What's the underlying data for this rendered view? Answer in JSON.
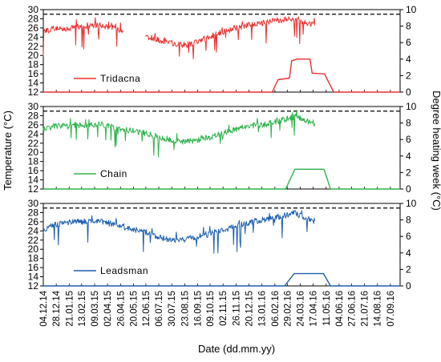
{
  "chart_data": {
    "type": "line",
    "title": "",
    "xlabel": "Date (dd.mm.yy)",
    "ylabel_left": "Temperature (°C)",
    "ylabel_right": "Degree heating week (°C)",
    "x_tick_labels": [
      "04.12.14",
      "28.12.14",
      "21.01.15",
      "13.02.15",
      "09.03.15",
      "02.04.15",
      "26.04.15",
      "20.05.15",
      "12.06.15",
      "06.07.15",
      "30.07.15",
      "23.08.15",
      "16.09.15",
      "09.10.15",
      "02.11.15",
      "26.11.15",
      "20.12.15",
      "13.01.16",
      "06.02.16",
      "29.02.16",
      "24.03.16",
      "17.04.16",
      "11.05.16",
      "04.06.16",
      "27.06.16",
      "21.07.16",
      "14.08.16",
      "07.09.16"
    ],
    "x_range": [
      "2014-12-04",
      "2016-09-25"
    ],
    "temperature_ylim": [
      12,
      30
    ],
    "temperature_ticks": [
      12,
      14,
      16,
      18,
      20,
      22,
      24,
      26,
      28,
      30
    ],
    "dhw_ylim": [
      0,
      10
    ],
    "dhw_ticks": [
      0,
      2,
      4,
      6,
      8,
      10
    ],
    "bleaching_threshold": 29,
    "panels": [
      {
        "name": "Tridacna",
        "color": "#e8302e",
        "temperature_segments": [
          [
            [
              "2014-12-04",
              25.0
            ],
            [
              "2014-12-19",
              25.8
            ],
            [
              "2015-01-03",
              26.0
            ],
            [
              "2015-01-18",
              25.6
            ],
            [
              "2015-02-02",
              26.2
            ],
            [
              "2015-02-17",
              26.1
            ],
            [
              "2015-03-04",
              26.6
            ],
            [
              "2015-03-19",
              26.5
            ],
            [
              "2015-04-03",
              26.3
            ],
            [
              "2015-04-18",
              25.7
            ],
            [
              "2015-04-30",
              25.4
            ]
          ],
          [
            [
              "2015-06-12",
              24.2
            ],
            [
              "2015-06-27",
              23.7
            ],
            [
              "2015-07-12",
              23.2
            ],
            [
              "2015-07-27",
              22.8
            ],
            [
              "2015-08-11",
              22.4
            ],
            [
              "2015-08-26",
              22.3
            ],
            [
              "2015-09-10",
              22.8
            ],
            [
              "2015-09-25",
              23.4
            ],
            [
              "2015-10-10",
              24.1
            ],
            [
              "2015-10-25",
              24.8
            ],
            [
              "2015-11-09",
              25.4
            ],
            [
              "2015-11-24",
              26.0
            ],
            [
              "2015-12-09",
              26.4
            ],
            [
              "2015-12-24",
              26.7
            ],
            [
              "2016-01-08",
              27.0
            ],
            [
              "2016-01-23",
              27.3
            ],
            [
              "2016-02-07",
              27.6
            ],
            [
              "2016-02-22",
              27.8
            ],
            [
              "2016-03-08",
              27.9
            ],
            [
              "2016-03-23",
              27.6
            ],
            [
              "2016-04-07",
              27.0
            ],
            [
              "2016-04-20",
              26.6
            ]
          ]
        ],
        "dhw": [
          [
            "2014-12-04",
            0
          ],
          [
            "2016-02-01",
            0
          ],
          [
            "2016-02-12",
            1.5
          ],
          [
            "2016-03-04",
            1.7
          ],
          [
            "2016-03-08",
            3.8
          ],
          [
            "2016-03-18",
            4.0
          ],
          [
            "2016-04-11",
            4.0
          ],
          [
            "2016-04-15",
            2.3
          ],
          [
            "2016-05-08",
            2.2
          ],
          [
            "2016-05-25",
            0
          ],
          [
            "2016-09-25",
            0
          ]
        ]
      },
      {
        "name": "Chain",
        "color": "#2db34a",
        "temperature_segments": [
          [
            [
              "2014-12-04",
              24.8
            ],
            [
              "2014-12-19",
              25.6
            ],
            [
              "2015-01-03",
              25.8
            ],
            [
              "2015-01-18",
              25.7
            ],
            [
              "2015-02-02",
              26.0
            ],
            [
              "2015-02-17",
              25.9
            ],
            [
              "2015-03-04",
              26.0
            ],
            [
              "2015-03-19",
              26.2
            ],
            [
              "2015-04-03",
              25.9
            ],
            [
              "2015-04-18",
              25.4
            ],
            [
              "2015-05-03",
              25.0
            ],
            [
              "2015-05-18",
              24.7
            ],
            [
              "2015-06-02",
              24.3
            ],
            [
              "2015-06-17",
              24.0
            ],
            [
              "2015-07-02",
              23.5
            ],
            [
              "2015-07-17",
              23.0
            ],
            [
              "2015-08-01",
              22.7
            ],
            [
              "2015-08-16",
              22.2
            ],
            [
              "2015-08-31",
              22.4
            ],
            [
              "2015-09-15",
              22.7
            ],
            [
              "2015-09-30",
              23.1
            ],
            [
              "2015-10-15",
              23.5
            ],
            [
              "2015-10-30",
              24.1
            ],
            [
              "2015-11-14",
              24.6
            ],
            [
              "2015-11-29",
              25.1
            ],
            [
              "2015-12-14",
              25.5
            ],
            [
              "2015-12-29",
              25.9
            ],
            [
              "2016-01-13",
              26.1
            ],
            [
              "2016-01-28",
              26.3
            ],
            [
              "2016-02-12",
              26.8
            ],
            [
              "2016-02-27",
              27.2
            ],
            [
              "2016-03-13",
              27.8
            ],
            [
              "2016-03-28",
              27.2
            ],
            [
              "2016-04-12",
              26.7
            ],
            [
              "2016-04-20",
              26.3
            ]
          ]
        ],
        "dhw": [
          [
            "2014-12-04",
            0
          ],
          [
            "2016-02-26",
            0
          ],
          [
            "2016-03-14",
            2.4
          ],
          [
            "2016-05-07",
            2.4
          ],
          [
            "2016-05-19",
            0
          ],
          [
            "2016-09-25",
            0
          ]
        ]
      },
      {
        "name": "Leadsman",
        "color": "#1f5fae",
        "temperature_segments": [
          [
            [
              "2014-12-04",
              24.0
            ],
            [
              "2014-12-19",
              25.0
            ],
            [
              "2015-01-03",
              25.6
            ],
            [
              "2015-01-18",
              25.9
            ],
            [
              "2015-02-02",
              26.1
            ],
            [
              "2015-02-17",
              26.0
            ],
            [
              "2015-03-04",
              26.3
            ],
            [
              "2015-03-19",
              26.1
            ],
            [
              "2015-04-03",
              25.7
            ],
            [
              "2015-04-18",
              25.2
            ],
            [
              "2015-05-03",
              24.8
            ],
            [
              "2015-05-18",
              24.4
            ],
            [
              "2015-06-02",
              24.0
            ],
            [
              "2015-06-17",
              23.5
            ],
            [
              "2015-07-02",
              22.9
            ],
            [
              "2015-07-17",
              22.3
            ],
            [
              "2015-08-01",
              21.9
            ],
            [
              "2015-08-16",
              22.0
            ],
            [
              "2015-08-31",
              22.3
            ],
            [
              "2015-09-15",
              22.7
            ],
            [
              "2015-09-30",
              23.0
            ],
            [
              "2015-10-15",
              23.6
            ],
            [
              "2015-10-30",
              24.1
            ],
            [
              "2015-11-14",
              24.6
            ],
            [
              "2015-11-29",
              25.2
            ],
            [
              "2015-12-14",
              25.7
            ],
            [
              "2015-12-29",
              26.1
            ],
            [
              "2016-01-13",
              26.4
            ],
            [
              "2016-01-28",
              26.7
            ],
            [
              "2016-02-12",
              27.0
            ],
            [
              "2016-02-27",
              27.4
            ],
            [
              "2016-03-13",
              28.0
            ],
            [
              "2016-03-28",
              27.1
            ],
            [
              "2016-04-12",
              26.4
            ],
            [
              "2016-04-20",
              26.2
            ]
          ]
        ],
        "dhw": [
          [
            "2014-12-04",
            0
          ],
          [
            "2016-02-24",
            0
          ],
          [
            "2016-03-13",
            1.5
          ],
          [
            "2016-05-06",
            1.5
          ],
          [
            "2016-05-19",
            0
          ],
          [
            "2016-09-25",
            0
          ]
        ]
      }
    ]
  }
}
